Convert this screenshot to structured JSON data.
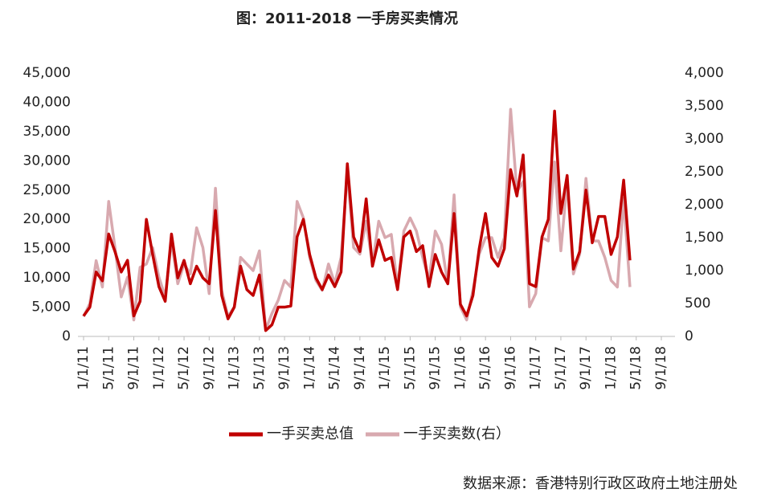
{
  "chart_data": {
    "type": "line",
    "title": "图：2011-2018 一手房买卖情况",
    "source": "数据来源：香港特别行政区政府土地注册处",
    "x": [
      "1/1/11",
      "2/1/11",
      "3/1/11",
      "4/1/11",
      "5/1/11",
      "6/1/11",
      "7/1/11",
      "8/1/11",
      "9/1/11",
      "10/1/11",
      "11/1/11",
      "12/1/11",
      "1/1/12",
      "2/1/12",
      "3/1/12",
      "4/1/12",
      "5/1/12",
      "6/1/12",
      "7/1/12",
      "8/1/12",
      "9/1/12",
      "10/1/12",
      "11/1/12",
      "12/1/12",
      "1/1/13",
      "2/1/13",
      "3/1/13",
      "4/1/13",
      "5/1/13",
      "6/1/13",
      "7/1/13",
      "8/1/13",
      "9/1/13",
      "10/1/13",
      "11/1/13",
      "12/1/13",
      "1/1/14",
      "2/1/14",
      "3/1/14",
      "4/1/14",
      "5/1/14",
      "6/1/14",
      "7/1/14",
      "8/1/14",
      "9/1/14",
      "10/1/14",
      "11/1/14",
      "12/1/14",
      "1/1/15",
      "2/1/15",
      "3/1/15",
      "4/1/15",
      "5/1/15",
      "6/1/15",
      "7/1/15",
      "8/1/15",
      "9/1/15",
      "10/1/15",
      "11/1/15",
      "12/1/15",
      "1/1/16",
      "2/1/16",
      "3/1/16",
      "4/1/16",
      "5/1/16",
      "6/1/16",
      "7/1/16",
      "8/1/16",
      "9/1/16",
      "10/1/16",
      "11/1/16",
      "12/1/16",
      "1/1/17",
      "2/1/17",
      "3/1/17",
      "4/1/17",
      "5/1/17",
      "6/1/17",
      "7/1/17",
      "8/1/17",
      "9/1/17",
      "10/1/17",
      "11/1/17",
      "12/1/17",
      "1/1/18",
      "2/1/18",
      "3/1/18",
      "4/1/18"
    ],
    "series": [
      {
        "name": "一手买卖总值",
        "color": "#c00000",
        "values": [
          3500,
          5000,
          11000,
          9500,
          17500,
          14500,
          11000,
          13000,
          3500,
          6000,
          20000,
          14000,
          8500,
          6000,
          17500,
          10000,
          13000,
          9000,
          12000,
          10000,
          9000,
          21500,
          7000,
          3000,
          5000,
          12000,
          8000,
          7000,
          10500,
          1000,
          2000,
          5000,
          5000,
          5200,
          17000,
          20000,
          14000,
          10000,
          8000,
          10500,
          8500,
          11000,
          29500,
          17000,
          14500,
          23500,
          12000,
          16500,
          13000,
          13500,
          8000,
          17000,
          18000,
          14500,
          15500,
          8500,
          14000,
          11000,
          9000,
          21000,
          5500,
          3500,
          7000,
          15000,
          21000,
          13500,
          12000,
          15000,
          28500,
          24000,
          31000,
          9000,
          8500,
          17000,
          20000,
          38500,
          21000,
          27500,
          11500,
          14500,
          25000,
          16000,
          20500,
          20500,
          14000,
          17000,
          26700,
          13000
        ]
      },
      {
        "name": "一手买卖数(右）",
        "color": "#d8a9af",
        "axis": "y2",
        "values": [
          300,
          500,
          1150,
          750,
          2050,
          1350,
          600,
          900,
          250,
          1050,
          1100,
          1350,
          900,
          600,
          1450,
          800,
          1100,
          950,
          1650,
          1350,
          650,
          2250,
          700,
          300,
          450,
          1200,
          1100,
          1000,
          1300,
          100,
          350,
          550,
          850,
          750,
          2050,
          1800,
          1200,
          850,
          700,
          1100,
          800,
          1200,
          2500,
          1350,
          1250,
          1750,
          1100,
          1750,
          1500,
          1550,
          750,
          1600,
          1800,
          1600,
          1200,
          850,
          1600,
          1400,
          800,
          2150,
          450,
          250,
          700,
          1250,
          1500,
          1500,
          1200,
          1500,
          3450,
          2200,
          2350,
          450,
          650,
          1500,
          1450,
          2650,
          1300,
          2350,
          950,
          1250,
          2400,
          1450,
          1450,
          1200,
          850,
          750,
          2100,
          750
        ]
      }
    ],
    "xlim": [
      "1/1/11",
      "9/1/18"
    ],
    "xticks": [
      "1/1/11",
      "5/1/11",
      "9/1/11",
      "1/1/12",
      "5/1/12",
      "9/1/12",
      "1/1/13",
      "5/1/13",
      "9/1/13",
      "1/1/14",
      "5/1/14",
      "9/1/14",
      "1/1/15",
      "5/1/15",
      "9/1/15",
      "1/1/16",
      "5/1/16",
      "9/1/16",
      "1/1/17",
      "5/1/17",
      "9/1/17",
      "1/1/18",
      "5/1/18",
      "9/1/18"
    ],
    "ylim": [
      0,
      45000
    ],
    "yticks": [
      0,
      {
        "value": 5000,
        "label": "5,000"
      },
      {
        "value": 10000,
        "label": "10,000"
      },
      {
        "value": 15000,
        "label": "15,000"
      },
      {
        "value": 20000,
        "label": "20,000"
      },
      {
        "value": 25000,
        "label": "25,000"
      },
      {
        "value": 30000,
        "label": "30,000"
      },
      {
        "value": 35000,
        "label": "35,000"
      },
      {
        "value": 40000,
        "label": "40,000"
      },
      {
        "value": 45000,
        "label": "45,000"
      }
    ],
    "y2lim": [
      0,
      4000
    ],
    "y2ticks": [
      0,
      500,
      {
        "value": 1000,
        "label": "1,000"
      },
      {
        "value": 1500,
        "label": "1,500"
      },
      {
        "value": 2000,
        "label": "2,000"
      },
      {
        "value": 2500,
        "label": "2,500"
      },
      {
        "value": 3000,
        "label": "3,000"
      },
      {
        "value": 3500,
        "label": "3,500"
      },
      {
        "value": 4000,
        "label": "4,000"
      }
    ],
    "grid": false,
    "legend": "bottom"
  }
}
